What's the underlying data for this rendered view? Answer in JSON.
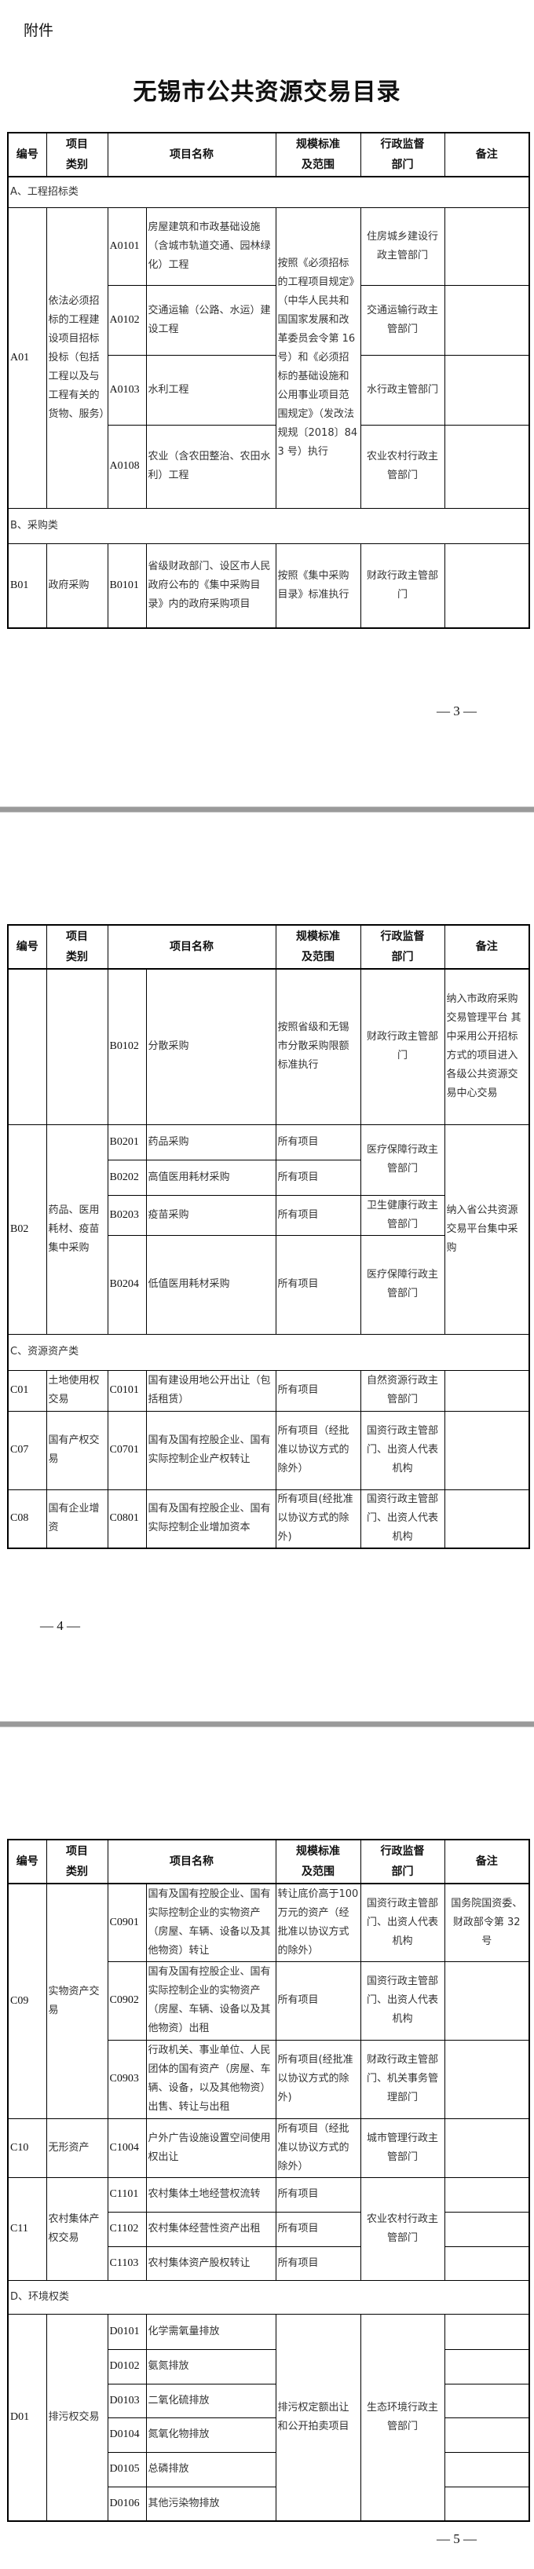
{
  "attachment_label": "附件",
  "title": "无锡市公共资源交易目录",
  "headers": {
    "code": "编号",
    "category": "项目类别",
    "name": "项目名称",
    "scale": "规模标准及范围",
    "dept": "行政监督部门",
    "remark": "备注"
  },
  "sections": {
    "A": "A、工程招标类",
    "B": "B、采购类",
    "C": "C、资源资产类",
    "D": "D、环境权类"
  },
  "groups": {
    "A01": {
      "code": "A01",
      "category": "依法必须招标的工程建设项目招标投标（包括工程以及与工程有关的货物、服务）",
      "scale": "按照《必须招标的工程项目规定》（中华人民共和国国家发展和改革委员会令第 16 号）和《必须招标的基础设施和公用事业项目范围规定》（发改法规规〔2018〕843 号）执行"
    },
    "B01": {
      "code": "B01",
      "category": "政府采购"
    },
    "B02": {
      "code": "B02",
      "category": "药品、医用耗材、疫苗集中采购",
      "remark": "纳入省公共资源交易平台集中采购",
      "dept_medical": "医疗保障行政主管部门"
    },
    "C01": {
      "code": "C01",
      "category": "土地使用权交易"
    },
    "C07": {
      "code": "C07",
      "category": "国有产权交易"
    },
    "C08": {
      "code": "C08",
      "category": "国有企业增资"
    },
    "C09": {
      "code": "C09",
      "category": "实物资产交易"
    },
    "C10": {
      "code": "C10",
      "category": "无形资产"
    },
    "C11": {
      "code": "C11",
      "category": "农村集体产权交易",
      "dept": "农业农村行政主管部门"
    },
    "D01": {
      "code": "D01",
      "category": "排污权交易",
      "scale": "排污权定额出让和公开拍卖项目",
      "dept": "生态环境行政主管部门"
    }
  },
  "items": {
    "A0101": {
      "code": "A0101",
      "name": "房屋建筑和市政基础设施（含城市轨道交通、园林绿化）工程",
      "dept": "住房城乡建设行政主管部门"
    },
    "A0102": {
      "code": "A0102",
      "name": "交通运输（公路、水运）建设工程",
      "dept": "交通运输行政主管部门"
    },
    "A0103": {
      "code": "A0103",
      "name": "水利工程",
      "dept": "水行政主管部门"
    },
    "A0108": {
      "code": "A0108",
      "name": "农业（含农田整治、农田水利）工程",
      "dept": "农业农村行政主管部门"
    },
    "B0101": {
      "code": "B0101",
      "name": "省级财政部门、设区市人民政府公布的《集中采购目录》内的政府采购项目",
      "scale": "按照《集中采购目录》标准执行",
      "dept": "财政行政主管部门"
    },
    "B0102": {
      "code": "B0102",
      "name": "分散采购",
      "scale": "按照省级和无锡市分散采购限额标准执行",
      "dept": "财政行政主管部门",
      "remark": "纳入市政府采购交易管理平台 其中采用公开招标方式的项目进入各级公共资源交易中心交易"
    },
    "B0201": {
      "code": "B0201",
      "name": "药品采购",
      "scale": "所有项目"
    },
    "B0202": {
      "code": "B0202",
      "name": "高值医用耗材采购",
      "scale": "所有项目"
    },
    "B0203": {
      "code": "B0203",
      "name": "疫苗采购",
      "scale": "所有项目",
      "dept": "卫生健康行政主管部门"
    },
    "B0204": {
      "code": "B0204",
      "name": "低值医用耗材采购",
      "scale": "所有项目",
      "dept": "医疗保障行政主管部门"
    },
    "C0101": {
      "code": "C0101",
      "name": "国有建设用地公开出让（包括租赁）",
      "scale": "所有项目",
      "dept": "自然资源行政主管部门"
    },
    "C0701": {
      "code": "C0701",
      "name": "国有及国有控股企业、国有实际控制企业产权转让",
      "scale": "所有项目（经批准以协议方式的除外）",
      "dept": "国资行政主管部门、出资人代表机构"
    },
    "C0801": {
      "code": "C0801",
      "name": "国有及国有控股企业、国有实际控制企业增加资本",
      "scale": "所有项目(经批准以协议方式的除外)",
      "dept": "国资行政主管部门、出资人代表机构"
    },
    "C0901": {
      "code": "C0901",
      "name": "国有及国有控股企业、国有实际控制企业的实物资产（房屋、车辆、设备以及其他物资）转让",
      "scale": "转让底价高于100 万元的资产（经批准以协议方式的除外）",
      "dept": "国资行政主管部门、出资人代表机构",
      "remark": "国务院国资委、财政部令第 32 号"
    },
    "C0902": {
      "code": "C0902",
      "name": "国有及国有控股企业、国有实际控制企业的实物资产（房屋、车辆、设备以及其他物资）出租",
      "scale": "所有项目",
      "dept": "国资行政主管部门、出资人代表机构"
    },
    "C0903": {
      "code": "C0903",
      "name": "行政机关、事业单位、人民团体的国有资产（房屋、车辆、设备，以及其他物资）出售、转让与出租",
      "scale": "所有项目(经批准以协议方式的除外)",
      "dept": "财政行政主管部门、机关事务管理部门"
    },
    "C1004": {
      "code": "C1004",
      "name": "户外广告设施设置空间使用权出让",
      "scale": "所有项目（经批准以协议方式的除外）",
      "dept": "城市管理行政主管部门"
    },
    "C1101": {
      "code": "C1101",
      "name": "农村集体土地经营权流转",
      "scale": "所有项目"
    },
    "C1102": {
      "code": "C1102",
      "name": "农村集体经营性资产出租",
      "scale": "所有项目"
    },
    "C1103": {
      "code": "C1103",
      "name": "农村集体资产股权转让",
      "scale": "所有项目"
    },
    "D0101": {
      "code": "D0101",
      "name": "化学需氧量排放"
    },
    "D0102": {
      "code": "D0102",
      "name": "氨氮排放"
    },
    "D0103": {
      "code": "D0103",
      "name": "二氧化硫排放"
    },
    "D0104": {
      "code": "D0104",
      "name": "氮氧化物排放"
    },
    "D0105": {
      "code": "D0105",
      "name": "总磷排放"
    },
    "D0106": {
      "code": "D0106",
      "name": "其他污染物排放"
    }
  },
  "page_numbers": {
    "p3": "— 3 —",
    "p4": "— 4 —",
    "p5": "— 5 —"
  }
}
